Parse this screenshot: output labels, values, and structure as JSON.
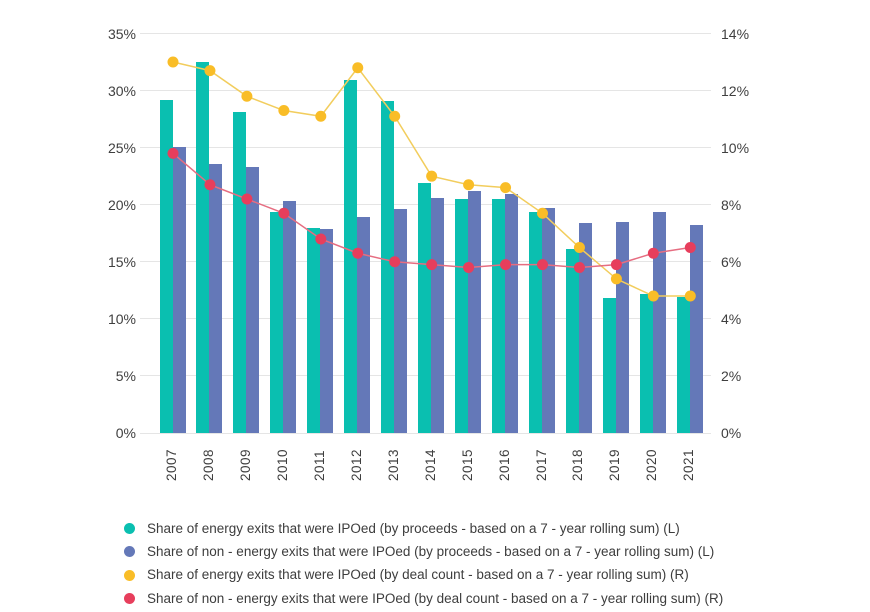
{
  "chart_data": {
    "type": "combo-bar-line",
    "categories": [
      "2007",
      "2008",
      "2009",
      "2010",
      "2011",
      "2012",
      "2013",
      "2014",
      "2015",
      "2016",
      "2017",
      "2018",
      "2019",
      "2020",
      "2021"
    ],
    "series": [
      {
        "name": "Share of energy exits that were IPOed (by proceeds - based on a 7 - year rolling sum) (L)",
        "type": "bar",
        "axis": "left",
        "color": "#0abfb0",
        "values": [
          29.2,
          32.5,
          28.1,
          19.4,
          18.0,
          30.9,
          29.1,
          21.9,
          20.5,
          20.5,
          19.4,
          16.1,
          11.8,
          12.2,
          11.9
        ]
      },
      {
        "name": "Share of non - energy exits that were IPOed (by proceeds - based on a 7 - year rolling sum) (L)",
        "type": "bar",
        "axis": "left",
        "color": "#6478b8",
        "values": [
          25.1,
          23.6,
          23.3,
          20.3,
          17.9,
          18.9,
          19.6,
          20.6,
          21.2,
          20.9,
          19.7,
          18.4,
          18.5,
          19.4,
          18.2
        ]
      },
      {
        "name": "Share of energy exits that were IPOed (by deal count - based on a 7 - year rolling sum) (R)",
        "type": "line",
        "axis": "right",
        "color": "#f9bd27",
        "line_color": "#f2cd5d",
        "values": [
          13.0,
          12.7,
          11.8,
          11.3,
          11.1,
          12.8,
          11.1,
          9.0,
          8.7,
          8.6,
          7.7,
          6.5,
          5.4,
          4.8,
          4.8
        ]
      },
      {
        "name": "Share of non - energy exits that were IPOed (by deal count - based on a 7 - year rolling sum) (R)",
        "type": "line",
        "axis": "right",
        "color": "#e73e5c",
        "line_color": "#e66d81",
        "values": [
          9.8,
          8.7,
          8.2,
          7.7,
          6.8,
          6.3,
          6.0,
          5.9,
          5.8,
          5.9,
          5.9,
          5.8,
          5.9,
          6.3,
          6.5
        ]
      }
    ],
    "left_axis": {
      "min": 0,
      "max": 35,
      "step": 5,
      "labels": [
        "0%",
        "5%",
        "10%",
        "15%",
        "20%",
        "25%",
        "30%",
        "35%"
      ]
    },
    "right_axis": {
      "min": 0,
      "max": 14,
      "step": 2,
      "labels": [
        "0%",
        "2%",
        "4%",
        "6%",
        "8%",
        "10%",
        "12%",
        "14%"
      ]
    },
    "grid": true,
    "legend_position": "bottom",
    "title": ""
  }
}
